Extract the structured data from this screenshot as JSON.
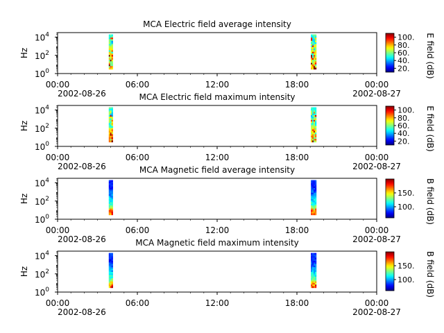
{
  "chart_data": [
    {
      "type": "heatmap",
      "title": "MCA  Electric field average intensity",
      "ylabel": "Hz",
      "yscale": "log",
      "ylim": [
        1,
        31622
      ],
      "y_ticks": [
        {
          "base": "10",
          "exp": "0"
        },
        {
          "base": "10",
          "exp": "2"
        },
        {
          "base": "10",
          "exp": "4"
        }
      ],
      "x_ticks": [
        "00:00",
        "06:00",
        "12:00",
        "18:00",
        "00:00"
      ],
      "x_dates": [
        "2002-08-26",
        "2002-08-27"
      ],
      "xlim_hours": [
        0,
        24
      ],
      "colorbar": {
        "label": "E field (dB)",
        "ticks": [
          "20.",
          "40.",
          "60.",
          "80.",
          "100."
        ],
        "range": [
          10,
          110
        ],
        "colormap": "jet"
      },
      "passes": [
        {
          "start_h": 3.85,
          "end_h": 4.15
        },
        {
          "start_h": 19.05,
          "end_h": 19.45
        }
      ],
      "freq_range_hz": [
        3,
        20000
      ]
    },
    {
      "type": "heatmap",
      "title": "MCA  Electric field maximum intensity",
      "ylabel": "Hz",
      "yscale": "log",
      "ylim": [
        1,
        31622
      ],
      "y_ticks": [
        {
          "base": "10",
          "exp": "0"
        },
        {
          "base": "10",
          "exp": "2"
        },
        {
          "base": "10",
          "exp": "4"
        }
      ],
      "x_ticks": [
        "00:00",
        "06:00",
        "12:00",
        "18:00",
        "00:00"
      ],
      "x_dates": [
        "2002-08-26",
        "2002-08-27"
      ],
      "xlim_hours": [
        0,
        24
      ],
      "colorbar": {
        "label": "E field (dB)",
        "ticks": [
          "20.",
          "40.",
          "60.",
          "80.",
          "100."
        ],
        "range": [
          10,
          110
        ],
        "colormap": "jet"
      },
      "passes": [
        {
          "start_h": 3.85,
          "end_h": 4.15
        },
        {
          "start_h": 19.05,
          "end_h": 19.45
        }
      ],
      "freq_range_hz": [
        3,
        20000
      ]
    },
    {
      "type": "heatmap",
      "title": "MCA  Magnetic field average intensity",
      "ylabel": "Hz",
      "yscale": "log",
      "ylim": [
        1,
        31622
      ],
      "y_ticks": [
        {
          "base": "10",
          "exp": "0"
        },
        {
          "base": "10",
          "exp": "2"
        },
        {
          "base": "10",
          "exp": "4"
        }
      ],
      "x_ticks": [
        "00:00",
        "06:00",
        "12:00",
        "18:00",
        "00:00"
      ],
      "x_dates": [
        "2002-08-26",
        "2002-08-27"
      ],
      "xlim_hours": [
        0,
        24
      ],
      "colorbar": {
        "label": "B field (dB)",
        "ticks": [
          "100.",
          "150."
        ],
        "range": [
          60,
          200
        ],
        "colormap": "jet"
      },
      "passes": [
        {
          "start_h": 3.85,
          "end_h": 4.15
        },
        {
          "start_h": 19.05,
          "end_h": 19.45
        }
      ],
      "freq_range_hz": [
        3,
        20000
      ]
    },
    {
      "type": "heatmap",
      "title": "MCA  Magnetic field maximum intensity",
      "ylabel": "Hz",
      "yscale": "log",
      "ylim": [
        1,
        31622
      ],
      "y_ticks": [
        {
          "base": "10",
          "exp": "0"
        },
        {
          "base": "10",
          "exp": "2"
        },
        {
          "base": "10",
          "exp": "4"
        }
      ],
      "x_ticks": [
        "00:00",
        "06:00",
        "12:00",
        "18:00",
        "00:00"
      ],
      "x_dates": [
        "2002-08-26",
        "2002-08-27"
      ],
      "xlim_hours": [
        0,
        24
      ],
      "colorbar": {
        "label": "B field (dB)",
        "ticks": [
          "100.",
          "150."
        ],
        "range": [
          60,
          200
        ],
        "colormap": "jet"
      },
      "passes": [
        {
          "start_h": 3.85,
          "end_h": 4.15
        },
        {
          "start_h": 19.05,
          "end_h": 19.45
        }
      ],
      "freq_range_hz": [
        3,
        20000
      ]
    }
  ]
}
